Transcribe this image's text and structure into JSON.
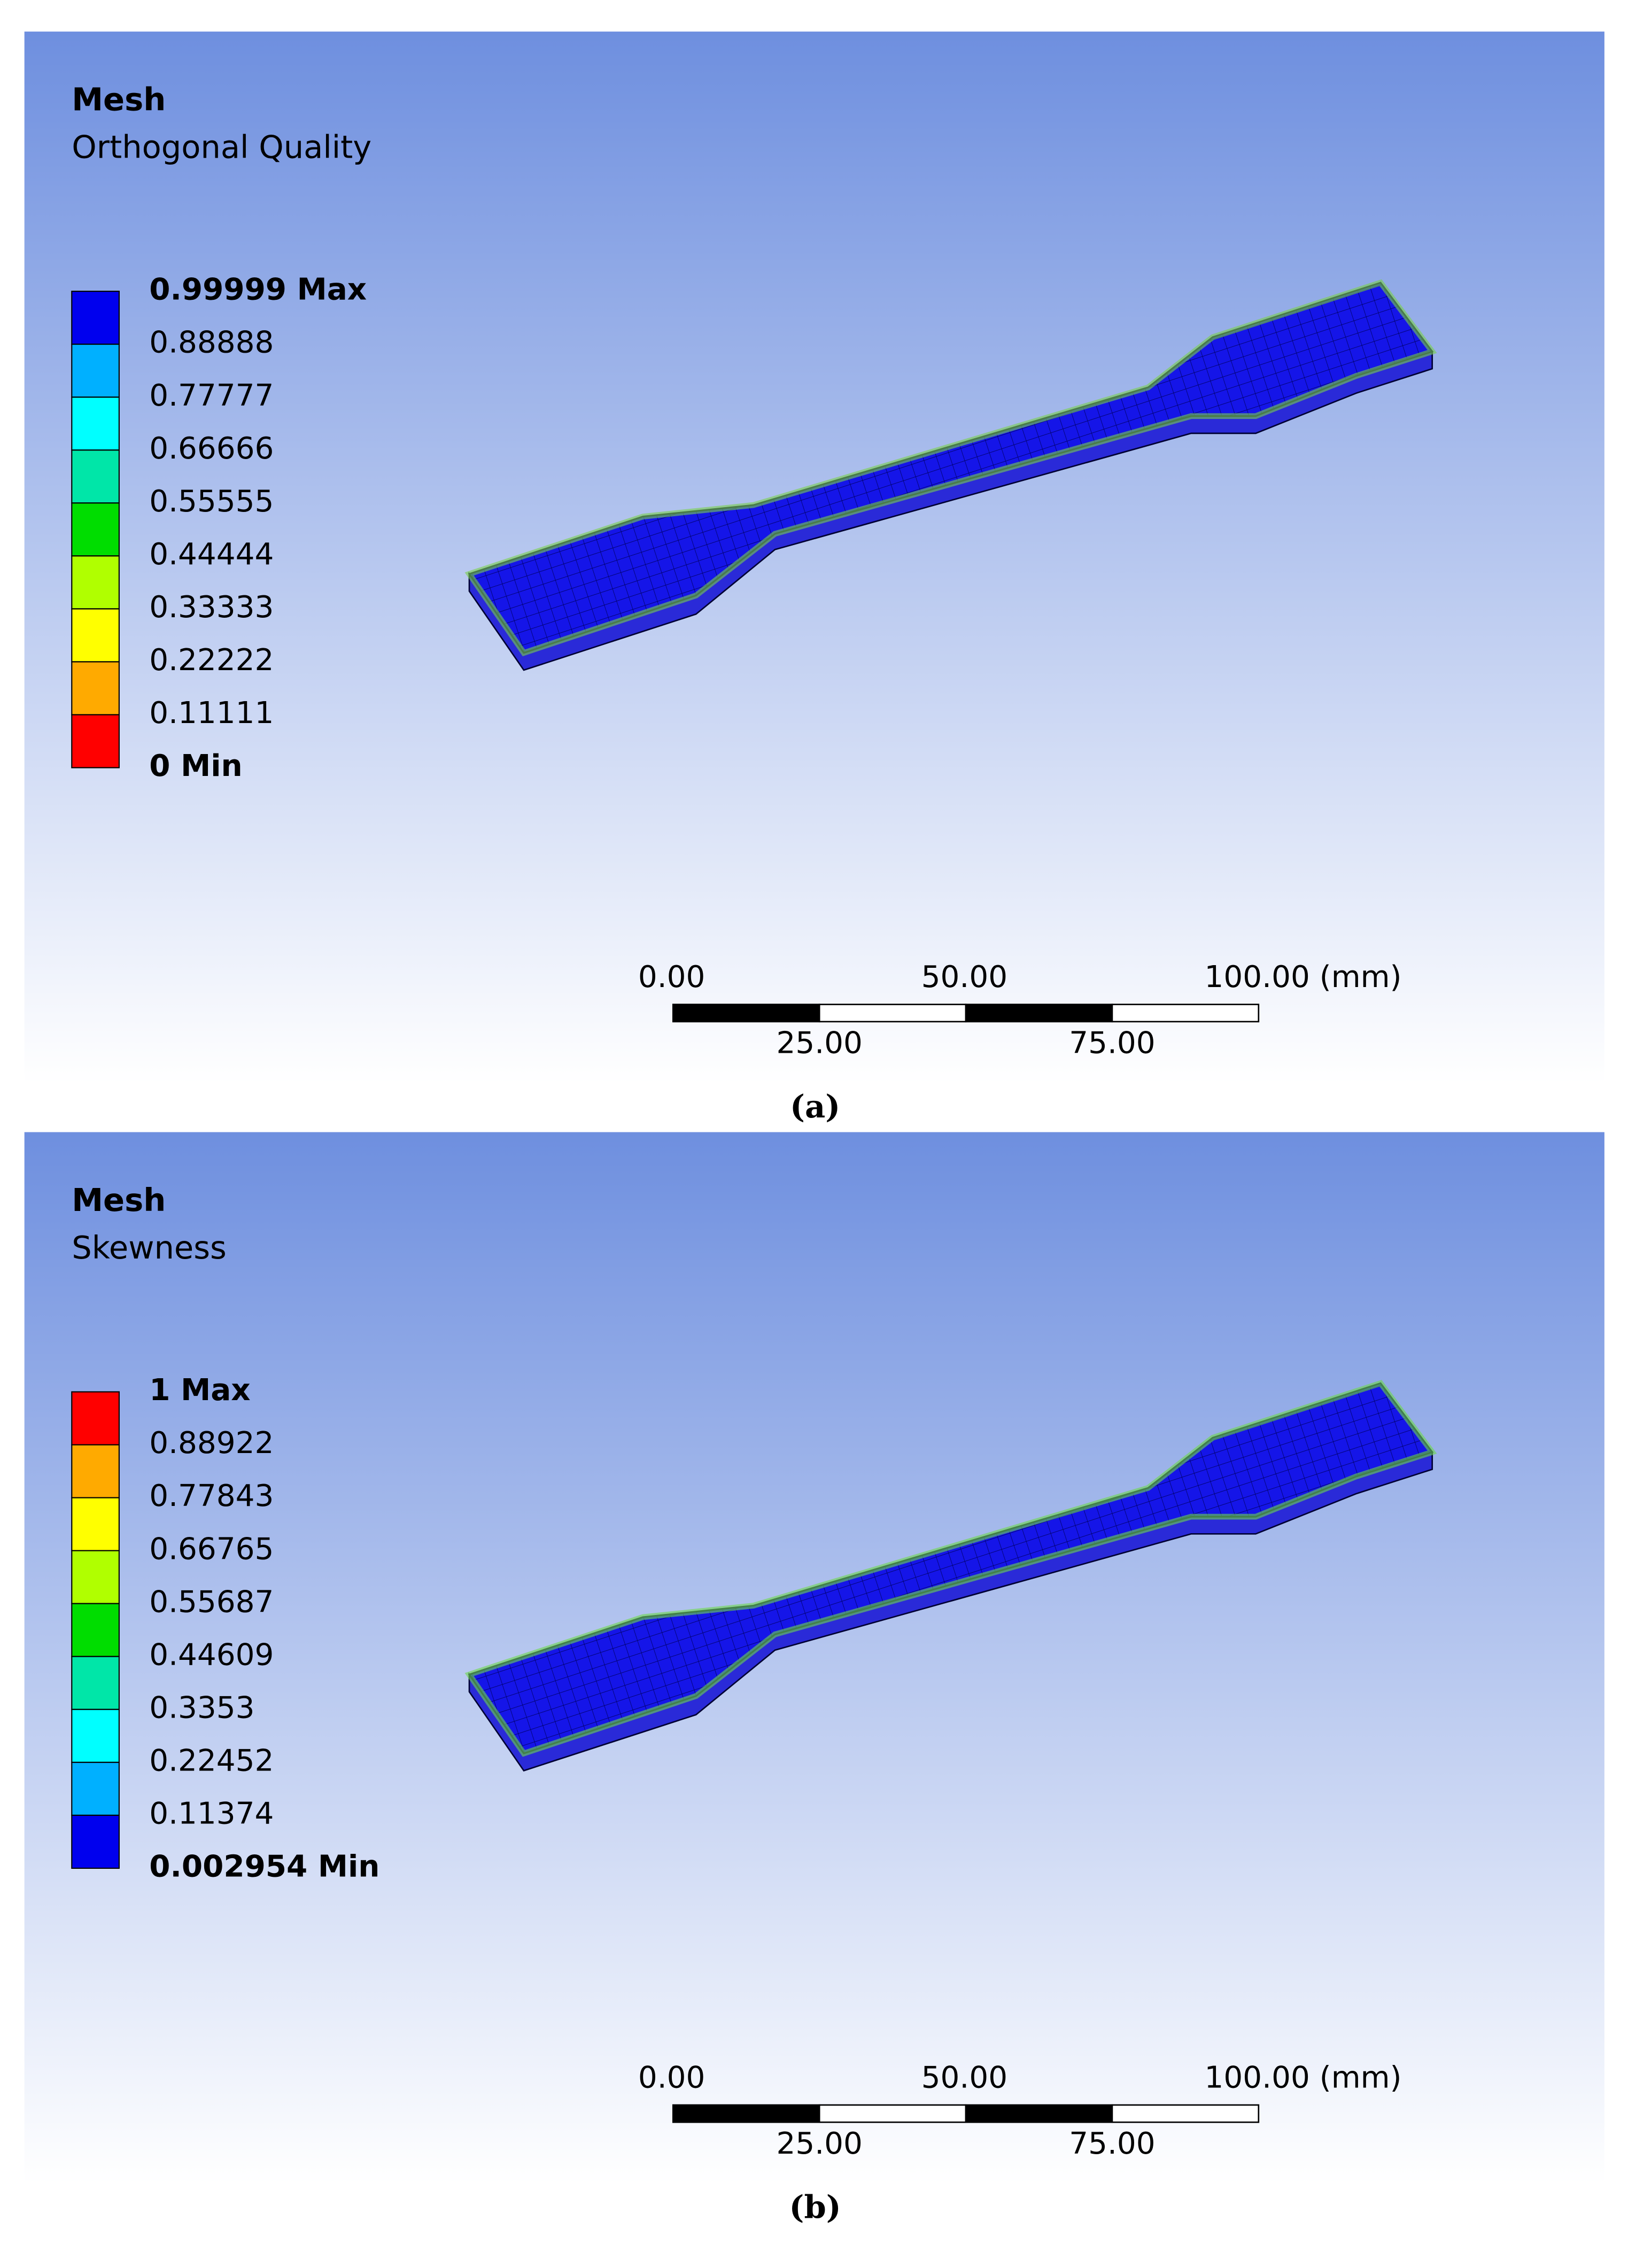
{
  "panels": [
    {
      "title": "Mesh",
      "subtitle": "Orthogonal Quality",
      "legend": {
        "labels": [
          "0.99999 Max",
          "0.88888",
          "0.77777",
          "0.66666",
          "0.55555",
          "0.44444",
          "0.33333",
          "0.22222",
          "0.11111",
          "0 Min"
        ],
        "colors": [
          "#0000ee",
          "#00b0ff",
          "#00ffff",
          "#00e6a8",
          "#00dd00",
          "#b0ff00",
          "#ffff00",
          "#ffaa00",
          "#ff0000"
        ]
      },
      "scale": {
        "top": [
          "0.00",
          "50.00",
          "100.00 (mm)"
        ],
        "bottom": [
          "25.00",
          "75.00"
        ]
      },
      "caption": "(a)"
    },
    {
      "title": "Mesh",
      "subtitle": "Skewness",
      "legend": {
        "labels": [
          "1 Max",
          "0.88922",
          "0.77843",
          "0.66765",
          "0.55687",
          "0.44609",
          "0.3353",
          "0.22452",
          "0.11374",
          "0.002954 Min"
        ],
        "colors": [
          "#ff0000",
          "#ffaa00",
          "#ffff00",
          "#b0ff00",
          "#00dd00",
          "#00e6a8",
          "#00ffff",
          "#00b0ff",
          "#0000ee"
        ]
      },
      "scale": {
        "top": [
          "0.00",
          "50.00",
          "100.00 (mm)"
        ],
        "bottom": [
          "25.00",
          "75.00"
        ]
      },
      "caption": "(b)"
    }
  ]
}
